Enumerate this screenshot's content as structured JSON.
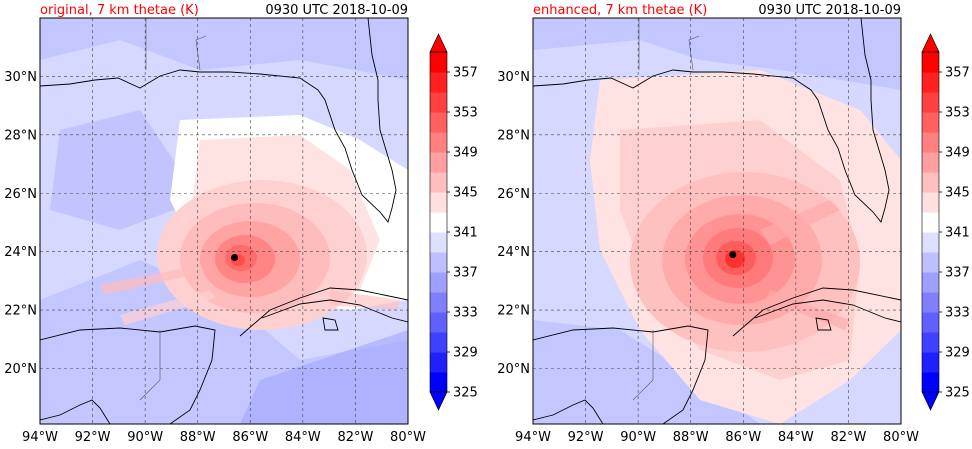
{
  "panels": [
    {
      "title_left": "original, 7 km thetae (K)",
      "title_right": "0930 UTC 2018-10-09",
      "storm_center": {
        "lon": -86.6,
        "lat": 23.8
      }
    },
    {
      "title_left": "enhanced, 7 km thetae (K)",
      "title_right": "0930 UTC 2018-10-09",
      "storm_center": {
        "lon": -86.4,
        "lat": 23.9
      }
    }
  ],
  "colors": {
    "title_left": "#ff0000",
    "low_end": "#0000ff",
    "high_end": "#ff0000",
    "coast": "#000000"
  },
  "chart_data": {
    "type": "heatmap",
    "variable": "thetae",
    "units": "K",
    "x_ticks": [
      "94°W",
      "92°W",
      "90°W",
      "88°W",
      "86°W",
      "84°W",
      "82°W",
      "80°W"
    ],
    "x_values": [
      -94,
      -92,
      -90,
      -88,
      -86,
      -84,
      -82,
      -80
    ],
    "y_ticks": [
      "20°N",
      "22°N",
      "24°N",
      "26°N",
      "28°N",
      "30°N"
    ],
    "y_values": [
      20,
      22,
      24,
      26,
      28,
      30
    ],
    "xlim": [
      -94,
      -80
    ],
    "ylim": [
      18.1,
      32
    ],
    "grid": true,
    "colorbar": {
      "levels": [
        325,
        327,
        329,
        331,
        333,
        335,
        337,
        339,
        341,
        343,
        345,
        347,
        349,
        351,
        353,
        355,
        357,
        359
      ],
      "tick_labels": [
        "325",
        "329",
        "333",
        "337",
        "341",
        "345",
        "349",
        "353",
        "357"
      ],
      "tick_values": [
        325,
        329,
        333,
        337,
        341,
        345,
        349,
        353,
        357
      ],
      "extend": "both"
    }
  }
}
